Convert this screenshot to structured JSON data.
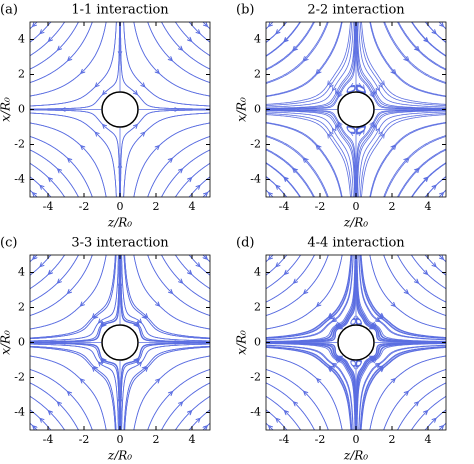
{
  "chart_data": [
    {
      "type": "streamline",
      "panel": "(a)",
      "title": "1-1 interaction",
      "xlabel": "z/R₀",
      "ylabel": "x/R₀",
      "xlim": [
        -5,
        5
      ],
      "ylim": [
        -5,
        5
      ],
      "xticks": [
        -4,
        -2,
        0,
        2,
        4
      ],
      "yticks": [
        -4,
        -2,
        0,
        2,
        4
      ],
      "color": "#5b6ee1"
    },
    {
      "type": "streamline",
      "panel": "(b)",
      "title": "2-2 interaction",
      "xlabel": "z/R₀",
      "ylabel": "x/R₀",
      "xlim": [
        -5,
        5
      ],
      "ylim": [
        -5,
        5
      ],
      "xticks": [
        -4,
        -2,
        0,
        2,
        4
      ],
      "yticks": [
        -4,
        -2,
        0,
        2,
        4
      ],
      "color": "#5b6ee1"
    },
    {
      "type": "streamline",
      "panel": "(c)",
      "title": "3-3 interaction",
      "xlabel": "z/R₀",
      "ylabel": "x/R₀",
      "xlim": [
        -5,
        5
      ],
      "ylim": [
        -5,
        5
      ],
      "xticks": [
        -4,
        -2,
        0,
        2,
        4
      ],
      "yticks": [
        -4,
        -2,
        0,
        2,
        4
      ],
      "color": "#5b6ee1"
    },
    {
      "type": "streamline",
      "panel": "(d)",
      "title": "4-4 interaction",
      "xlabel": "z/R₀",
      "ylabel": "x/R₀",
      "xlim": [
        -5,
        5
      ],
      "ylim": [
        -5,
        5
      ],
      "xticks": [
        -4,
        -2,
        0,
        2,
        4
      ],
      "yticks": [
        -4,
        -2,
        0,
        2,
        4
      ],
      "color": "#5b6ee1"
    }
  ]
}
